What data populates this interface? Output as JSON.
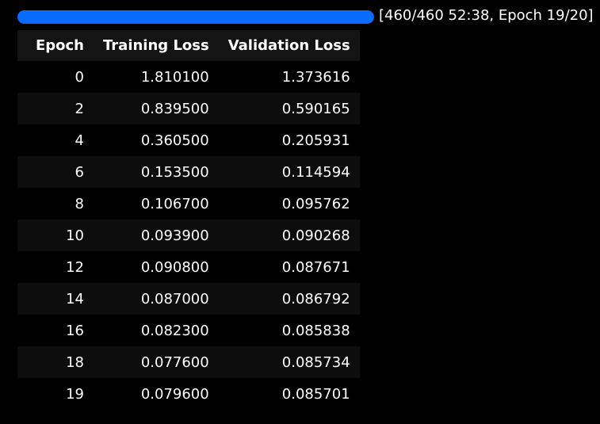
{
  "progress": {
    "fraction": 1.0,
    "text": "[460/460 52:38, Epoch 19/20]",
    "color": "#0a6cff"
  },
  "table": {
    "headers": [
      "Epoch",
      "Training Loss",
      "Validation Loss"
    ],
    "rows": [
      [
        "0",
        "1.810100",
        "1.373616"
      ],
      [
        "2",
        "0.839500",
        "0.590165"
      ],
      [
        "4",
        "0.360500",
        "0.205931"
      ],
      [
        "6",
        "0.153500",
        "0.114594"
      ],
      [
        "8",
        "0.106700",
        "0.095762"
      ],
      [
        "10",
        "0.093900",
        "0.090268"
      ],
      [
        "12",
        "0.090800",
        "0.087671"
      ],
      [
        "14",
        "0.087000",
        "0.086792"
      ],
      [
        "16",
        "0.082300",
        "0.085838"
      ],
      [
        "18",
        "0.077600",
        "0.085734"
      ],
      [
        "19",
        "0.079600",
        "0.085701"
      ]
    ]
  }
}
